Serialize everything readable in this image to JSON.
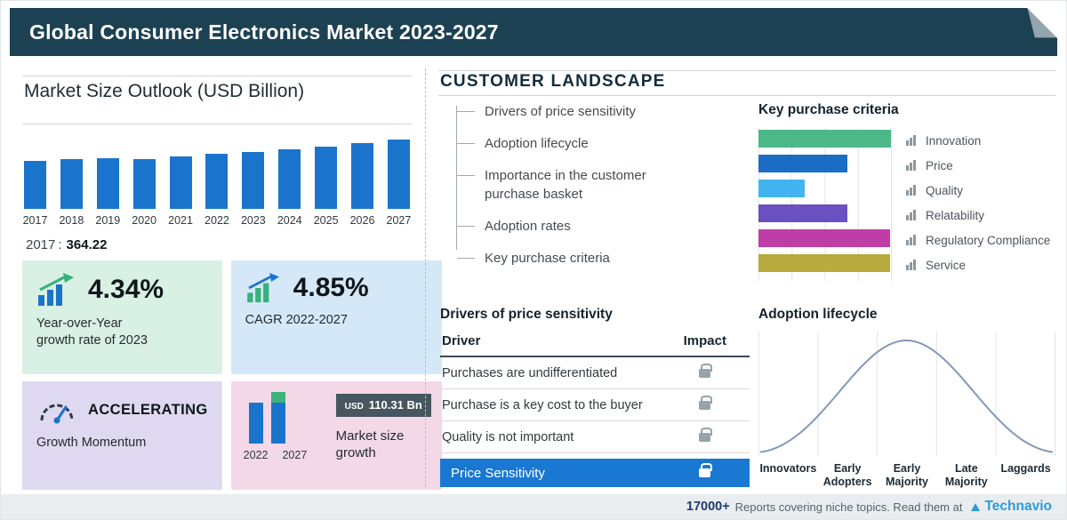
{
  "header": {
    "title": "Global Consumer Electronics Market 2023-2027"
  },
  "left_panel": {
    "title": "Market Size Outlook (USD Billion)",
    "base_note": {
      "year": "2017",
      "separator": ":",
      "value": "364.22"
    },
    "cards": {
      "yoy": {
        "value": "4.34%",
        "desc_line1": "Year-over-Year",
        "desc_line2": "growth rate of 2023"
      },
      "cagr": {
        "value": "4.85%",
        "desc": "CAGR 2022-2027"
      },
      "momentum": {
        "value": "ACCELERATING",
        "desc": "Growth Momentum"
      },
      "size_growth": {
        "badge_currency": "USD",
        "badge_value": "110.31 Bn",
        "desc": "Market size growth"
      }
    }
  },
  "customer_landscape": {
    "title": "CUSTOMER LANDSCAPE",
    "menu_items": [
      "Drivers of price sensitivity",
      "Adoption lifecycle",
      "Importance in the customer purchase basket",
      "Adoption rates",
      "Key purchase criteria"
    ],
    "purchase_criteria_title": "Key purchase criteria",
    "price_sensitivity": {
      "title": "Drivers of price sensitivity",
      "columns": [
        "Driver",
        "Impact"
      ],
      "rows": [
        "Purchases are undifferentiated",
        "Purchase is a key cost to the buyer",
        "Quality is not important"
      ],
      "highlight_row": "Price Sensitivity"
    },
    "adoption": {
      "title": "Adoption lifecycle"
    }
  },
  "footer": {
    "count": "17000+",
    "text": "Reports covering niche topics. Read them at",
    "brand": "Technavio"
  },
  "colors": {
    "header_bg": "#1c4152",
    "primary_bar_blue": "#1b74cc",
    "highlight_row_blue": "#1878d2",
    "brand_blue": "#2e9bd6",
    "card_mint": "#d9f0e4",
    "card_blue": "#d4e8f7",
    "card_lavender": "#ded9f0",
    "card_pink": "#f3d8e8"
  },
  "chart_data": [
    {
      "type": "bar",
      "title": "Market Size Outlook (USD Billion)",
      "categories": [
        "2017",
        "2018",
        "2019",
        "2020",
        "2021",
        "2022",
        "2023",
        "2024",
        "2025",
        "2026",
        "2027"
      ],
      "values": [
        364.22,
        372.5,
        381.2,
        376.4,
        396.8,
        413.0,
        430.9,
        449.0,
        468.5,
        494.6,
        523.3
      ],
      "labeled_point": {
        "year": "2017",
        "value": 364.22
      },
      "ylim": [
        0,
        550
      ],
      "bar_color": "#1b74cc",
      "note": "Only 2017 (364.22) is labeled; other values estimated from bar heights and stated rates (4.34% YoY 2023, 4.85% CAGR 2022-2027, USD 110.31 Bn growth)"
    },
    {
      "type": "bar",
      "orientation": "horizontal",
      "title": "Key purchase criteria",
      "categories": [
        "Innovation",
        "Price",
        "Quality",
        "Relatability",
        "Regulatory Compliance",
        "Service"
      ],
      "values": [
        100,
        67,
        35,
        67,
        99,
        99
      ],
      "colors": [
        "#4cb88a",
        "#1a6cc4",
        "#41b4f0",
        "#6a50c0",
        "#bf3da6",
        "#b8aa3c"
      ],
      "xlim": [
        0,
        100
      ],
      "note": "No numeric axis shown; values are relative bar lengths (% of chart width)"
    },
    {
      "type": "line",
      "title": "Adoption lifecycle",
      "shape": "bell-curve",
      "categories": [
        "Innovators",
        "Early Adopters",
        "Early Majority",
        "Late Majority",
        "Laggards"
      ],
      "note": "Stylized normal-distribution adoption curve, no numeric axes"
    },
    {
      "type": "bar",
      "title": "Market size growth",
      "categories": [
        "2022",
        "2027"
      ],
      "values": [
        413.0,
        523.31
      ],
      "growth_label": "USD 110.31 Bn",
      "note": "2027 = 2022 + 110.31 implied"
    }
  ]
}
